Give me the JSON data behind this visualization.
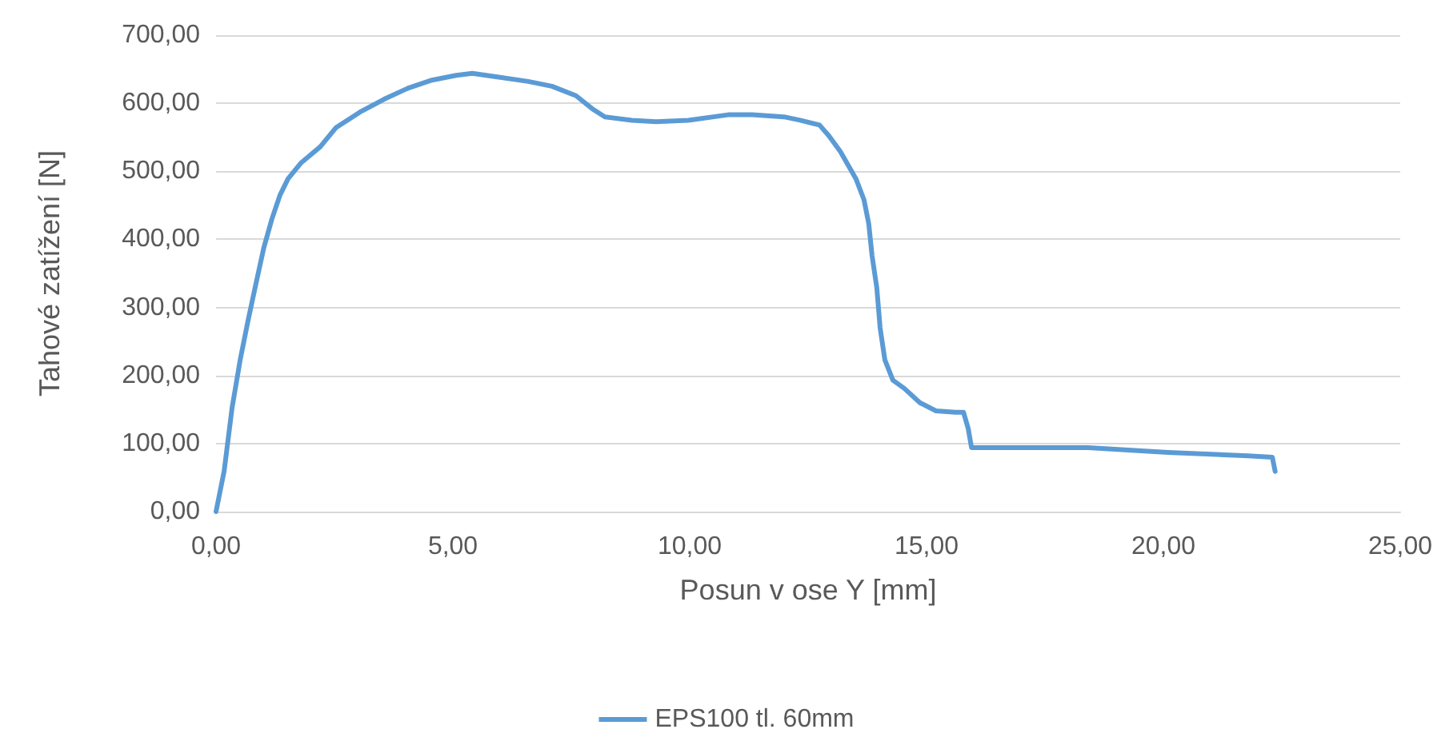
{
  "chart_data": {
    "type": "line",
    "xlabel": "Posun v ose Y [mm]",
    "ylabel": "Tahové zatížení [N]",
    "grid": "y",
    "legend": "bottom",
    "marker": "none",
    "line_style": "solid",
    "xlim": [
      0,
      25
    ],
    "ylim": [
      0,
      700
    ],
    "xticks": [
      {
        "value": 0,
        "label": "0,00"
      },
      {
        "value": 5,
        "label": "5,00"
      },
      {
        "value": 10,
        "label": "10,00"
      },
      {
        "value": 15,
        "label": "15,00"
      },
      {
        "value": 20,
        "label": "20,00"
      },
      {
        "value": 25,
        "label": "25,00"
      }
    ],
    "yticks": [
      {
        "value": 0,
        "label": "0,00"
      },
      {
        "value": 100,
        "label": "100,00"
      },
      {
        "value": 200,
        "label": "200,00"
      },
      {
        "value": 300,
        "label": "300,00"
      },
      {
        "value": 400,
        "label": "400,00"
      },
      {
        "value": 500,
        "label": "500,00"
      },
      {
        "value": 600,
        "label": "600,00"
      },
      {
        "value": 700,
        "label": "700,00"
      }
    ],
    "series": [
      {
        "name": "EPS100 tl. 60mm",
        "color": "#5b9bd5",
        "x": [
          0,
          0.17,
          0.34,
          0.51,
          0.68,
          0.84,
          1.01,
          1.18,
          1.35,
          1.52,
          1.79,
          2.2,
          2.53,
          3.04,
          3.55,
          4.05,
          4.56,
          5.07,
          5.41,
          5.91,
          6.59,
          7.09,
          7.6,
          7.94,
          8.21,
          8.78,
          9.29,
          9.97,
          10.81,
          11.32,
          11.99,
          12.33,
          12.74,
          12.94,
          13.18,
          13.51,
          13.68,
          13.78,
          13.85,
          13.95,
          14.02,
          14.12,
          14.29,
          14.53,
          14.86,
          15.2,
          15.61,
          15.78,
          15.88,
          15.95,
          16.39,
          18.41,
          20.1,
          21.79,
          22.3,
          22.36
        ],
        "values": [
          0,
          59,
          153,
          223,
          282,
          334,
          388,
          430,
          465,
          489,
          512,
          536,
          564,
          587,
          606,
          622,
          634,
          641,
          644,
          639,
          632,
          625,
          611,
          592,
          580,
          575,
          573,
          575,
          583,
          583,
          580,
          575,
          568,
          552,
          529,
          489,
          458,
          423,
          376,
          329,
          270,
          223,
          193,
          181,
          160,
          148,
          146,
          146,
          122,
          94,
          94,
          94,
          87,
          82,
          80,
          59
        ]
      }
    ]
  }
}
